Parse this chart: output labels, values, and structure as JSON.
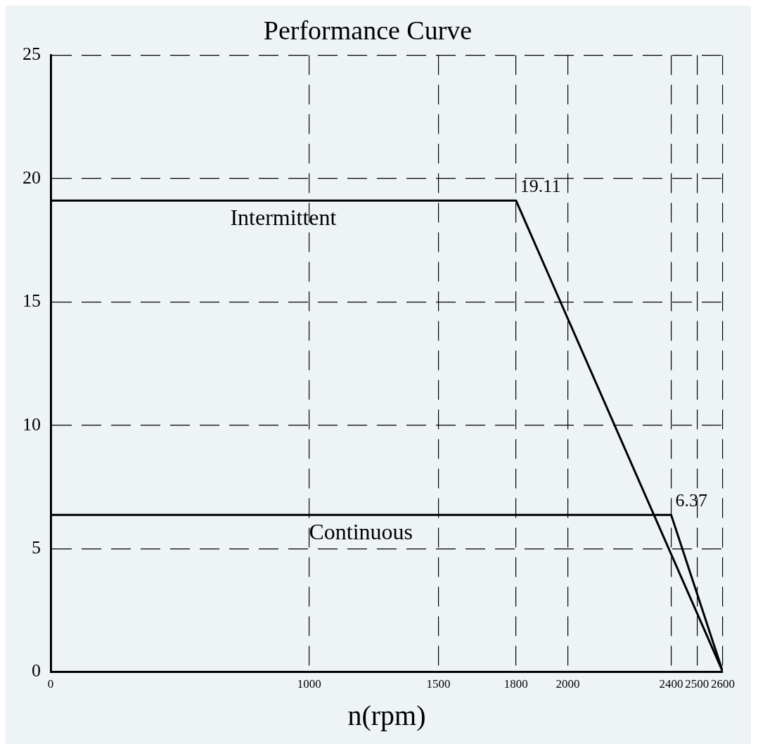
{
  "chart_data": {
    "type": "line",
    "title": "Performance Curve",
    "xlabel": "n(rpm)",
    "series": [
      {
        "name": "Intermittent",
        "color": "#000000",
        "x": [
          0,
          1800,
          2600
        ],
        "values": [
          19.11,
          19.11,
          0
        ],
        "value_labels": [
          null,
          "19.11",
          null
        ]
      },
      {
        "name": "Continuous",
        "color": "#000000",
        "x": [
          0,
          2400,
          2600
        ],
        "values": [
          6.37,
          6.37,
          0
        ],
        "value_labels": [
          null,
          "6.37",
          null
        ]
      }
    ],
    "xlim": [
      0,
      2600
    ],
    "xticks": [
      0,
      1000,
      1500,
      1800,
      2000,
      2400,
      2500,
      2600
    ],
    "ylim": [
      0,
      25
    ],
    "yticks": [
      0,
      5,
      10,
      15,
      20,
      25
    ],
    "grid": true,
    "legend": false,
    "marker": "none",
    "line_style": "solid"
  }
}
